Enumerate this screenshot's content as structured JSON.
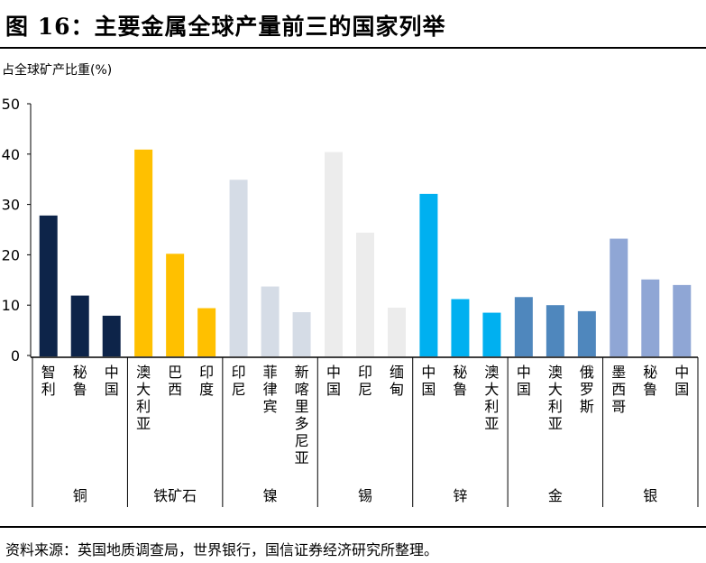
{
  "figure": {
    "title": "图 16：主要金属全球产量前三的国家列举",
    "ylabel": "占全球矿产比重(%)",
    "source": "资料来源：英国地质调查局，世界银行，国信证券经济研究所整理。"
  },
  "chart_data": {
    "type": "bar",
    "title": "图 16：主要金属全球产量前三的国家列举",
    "ylabel": "占全球矿产比重(%)",
    "xlabel": "",
    "ylim": [
      0,
      50
    ],
    "yticks": [
      "0",
      "10",
      "20",
      "30",
      "40",
      "50"
    ],
    "grid": false,
    "legend": "none",
    "groups": [
      {
        "metal": "铜",
        "bars": [
          {
            "country": "智利",
            "value": 27.8,
            "color": "#0d2449"
          },
          {
            "country": "秘鲁",
            "value": 11.9,
            "color": "#0d2449"
          },
          {
            "country": "中国",
            "value": 7.9,
            "color": "#0d2449"
          }
        ]
      },
      {
        "metal": "铁矿石",
        "bars": [
          {
            "country": "澳大利亚",
            "value": 40.9,
            "color": "#ffc000"
          },
          {
            "country": "巴西",
            "value": 20.2,
            "color": "#ffc000"
          },
          {
            "country": "印度",
            "value": 9.4,
            "color": "#ffc000"
          }
        ]
      },
      {
        "metal": "镍",
        "bars": [
          {
            "country": "印尼",
            "value": 34.9,
            "color": "#d5dce6"
          },
          {
            "country": "菲律宾",
            "value": 13.7,
            "color": "#d5dce6"
          },
          {
            "country": "新喀里多尼亚",
            "value": 8.6,
            "color": "#d5dce6"
          }
        ]
      },
      {
        "metal": "锡",
        "bars": [
          {
            "country": "中国",
            "value": 40.4,
            "color": "#ececec"
          },
          {
            "country": "印尼",
            "value": 24.4,
            "color": "#ececec"
          },
          {
            "country": "缅甸",
            "value": 9.5,
            "color": "#ececec"
          }
        ]
      },
      {
        "metal": "锌",
        "bars": [
          {
            "country": "中国",
            "value": 32.1,
            "color": "#00b0f0"
          },
          {
            "country": "秘鲁",
            "value": 11.2,
            "color": "#00b0f0"
          },
          {
            "country": "澳大利亚",
            "value": 8.5,
            "color": "#00b0f0"
          }
        ]
      },
      {
        "metal": "金",
        "bars": [
          {
            "country": "中国",
            "value": 11.6,
            "color": "#4f87bd"
          },
          {
            "country": "澳大利亚",
            "value": 10.0,
            "color": "#4f87bd"
          },
          {
            "country": "俄罗斯",
            "value": 8.8,
            "color": "#4f87bd"
          }
        ]
      },
      {
        "metal": "银",
        "bars": [
          {
            "country": "墨西哥",
            "value": 23.2,
            "color": "#8fa6d5"
          },
          {
            "country": "秘鲁",
            "value": 15.1,
            "color": "#8fa6d5"
          },
          {
            "country": "中国",
            "value": 14.0,
            "color": "#8fa6d5"
          }
        ]
      }
    ]
  }
}
